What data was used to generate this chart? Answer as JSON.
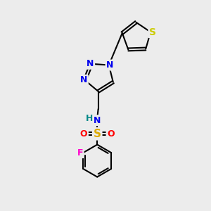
{
  "background_color": "#ececec",
  "bond_color": "#000000",
  "bond_width": 1.5,
  "atom_colors": {
    "N": "#0000ee",
    "S_sulfonamide": "#ddaa00",
    "S_thiophene": "#cccc00",
    "O": "#ff0000",
    "F": "#ff00cc",
    "H": "#008888",
    "C": "#000000"
  },
  "font_size": 9,
  "fig_width": 3.0,
  "fig_height": 3.0,
  "dpi": 100
}
